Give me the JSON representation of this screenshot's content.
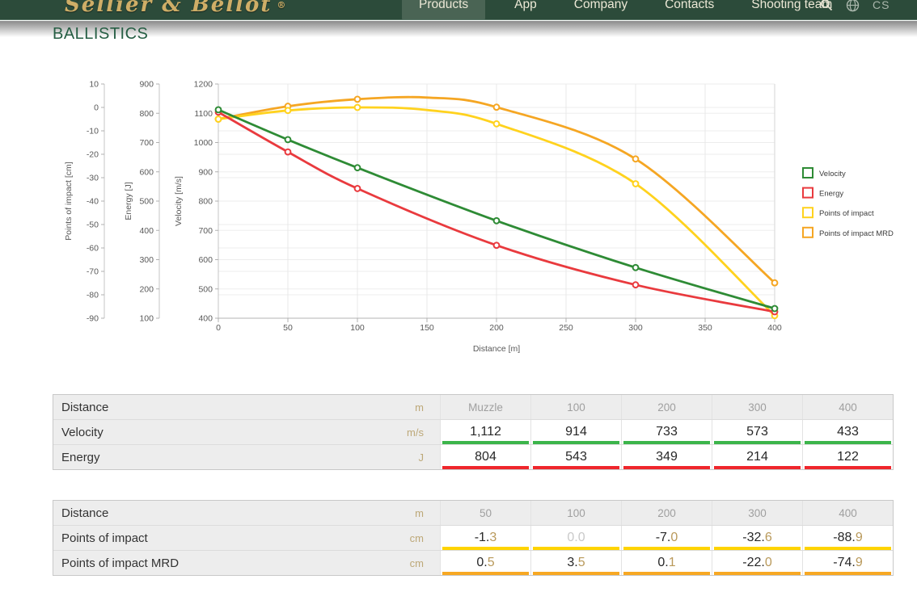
{
  "navbar": {
    "logo": "Sellier & Bellot",
    "logo_reg": "®",
    "items": [
      {
        "label": "Products",
        "active": true
      },
      {
        "label": "App",
        "active": false
      },
      {
        "label": "Company",
        "active": false
      },
      {
        "label": "Contacts",
        "active": false
      },
      {
        "label": "Shooting team",
        "active": false
      }
    ],
    "lang": "CS"
  },
  "page_title": "BALLISTICS",
  "colors": {
    "nav_green": "#2c4b3a",
    "title_green": "#265e44",
    "unit_gold": "#bda878",
    "velocity_green": "#2e8b35",
    "energy_red": "#e93a3e",
    "impact_yellow": "#ffd21e",
    "impact_mrd_orange": "#f5a623"
  },
  "chart_data": {
    "type": "line",
    "grid": true,
    "legend_position": "right",
    "x_axis": {
      "label": "Distance [m]",
      "min": 0,
      "max": 400,
      "ticks": [
        0,
        50,
        100,
        150,
        200,
        250,
        300,
        350,
        400
      ]
    },
    "y_axes": [
      {
        "id": "poi",
        "label": "Points of impact [cm]",
        "min": -90,
        "max": 10,
        "tick_step": 10
      },
      {
        "id": "energy",
        "label": "Energy [J]",
        "min": 100,
        "max": 900,
        "tick_step": 100
      },
      {
        "id": "velocity",
        "label": "Velocity [m/s]",
        "min": 400,
        "max": 1200,
        "tick_step": 100
      }
    ],
    "series": [
      {
        "name": "Velocity",
        "axis": "velocity",
        "color": "#2e8b35",
        "x": [
          0,
          50,
          100,
          200,
          300,
          400
        ],
        "y": [
          1112,
          1010,
          914,
          733,
          573,
          433
        ],
        "markers": [
          1,
          1,
          1,
          1,
          1,
          1
        ]
      },
      {
        "name": "Energy",
        "axis": "energy",
        "color": "#e93a3e",
        "x": [
          0,
          50,
          100,
          200,
          300,
          400
        ],
        "y": [
          804,
          668,
          543,
          349,
          214,
          122
        ],
        "markers": [
          1,
          1,
          1,
          1,
          1,
          1
        ]
      },
      {
        "name": "Points of impact",
        "axis": "poi",
        "color": "#ffd21e",
        "x": [
          0,
          50,
          100,
          150,
          200,
          300,
          400
        ],
        "y": [
          -5,
          -1.3,
          0.0,
          -1.1,
          -7.0,
          -32.6,
          -88.9
        ],
        "markers": [
          1,
          1,
          1,
          0,
          1,
          1,
          1
        ]
      },
      {
        "name": "Points of impact MRD",
        "axis": "poi",
        "color": "#f5a623",
        "x": [
          0,
          50,
          100,
          150,
          200,
          300,
          400
        ],
        "y": [
          -5,
          0.5,
          3.5,
          4.2,
          0.1,
          -22.0,
          -74.9
        ],
        "markers": [
          1,
          1,
          1,
          0,
          1,
          1,
          1
        ]
      }
    ]
  },
  "tables": [
    {
      "rows": [
        {
          "type": "header",
          "label": "Distance",
          "unit": "m",
          "values": [
            "Muzzle",
            "100",
            "200",
            "300",
            "400"
          ]
        },
        {
          "type": "data",
          "label": "Velocity",
          "unit": "m/s",
          "underline": "#3bb54a",
          "values": [
            "1,112",
            "914",
            "733",
            "573",
            "433"
          ]
        },
        {
          "type": "data",
          "label": "Energy",
          "unit": "J",
          "underline": "#ef262c",
          "values": [
            "804",
            "543",
            "349",
            "214",
            "122"
          ]
        }
      ]
    },
    {
      "rows": [
        {
          "type": "header",
          "label": "Distance",
          "unit": "m",
          "values": [
            "50",
            "100",
            "200",
            "300",
            "400"
          ]
        },
        {
          "type": "data",
          "label": "Points of impact",
          "unit": "cm",
          "underline": "#ffd400",
          "values": [
            "-1.3",
            "0.0",
            "-7.0",
            "-32.6",
            "-88.9"
          ],
          "muted": [
            false,
            true,
            false,
            false,
            false
          ]
        },
        {
          "type": "data",
          "label": "Points of impact MRD",
          "unit": "cm",
          "underline": "#f7a823",
          "values": [
            "0.5",
            "3.5",
            "0.1",
            "-22.0",
            "-74.9"
          ]
        }
      ]
    }
  ]
}
